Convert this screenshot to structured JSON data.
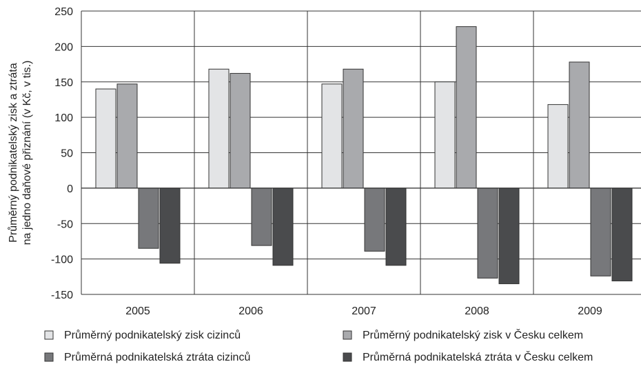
{
  "chart_data": {
    "type": "bar",
    "title": "",
    "ylabel_lines": [
      "Průměrný podnikatelský zisk a ztráta",
      "na jedno daňové přiznání (v Kč, v tis.)"
    ],
    "xlabel": "",
    "categories": [
      "2005",
      "2006",
      "2007",
      "2008",
      "2009"
    ],
    "ylim": [
      -150,
      250
    ],
    "yticks": [
      250,
      200,
      150,
      100,
      50,
      0,
      -50,
      -100,
      -150
    ],
    "ytick_labels": [
      "250",
      "200",
      "150",
      "100",
      "50",
      "0",
      "-50",
      "-100",
      "-150"
    ],
    "grid": "horizontal and vertical",
    "legend_position": "bottom",
    "series": [
      {
        "name": "Průměrný podnikatelský zisk cizinců",
        "color": "#e3e4e6",
        "values": [
          140,
          168,
          147,
          150,
          118
        ]
      },
      {
        "name": "Průměrný podnikatelský zisk v Česku celkem",
        "color": "#a9aaad",
        "values": [
          147,
          162,
          168,
          228,
          178
        ]
      },
      {
        "name": "Průměrná podnikatelská ztráta cizinců",
        "color": "#77787b",
        "values": [
          -85,
          -81,
          -89,
          -127,
          -124
        ]
      },
      {
        "name": "Průměrná podnikatelská ztráta v Česku celkem",
        "color": "#4a4b4d",
        "values": [
          -106,
          -109,
          -109,
          -135,
          -131
        ]
      }
    ]
  }
}
